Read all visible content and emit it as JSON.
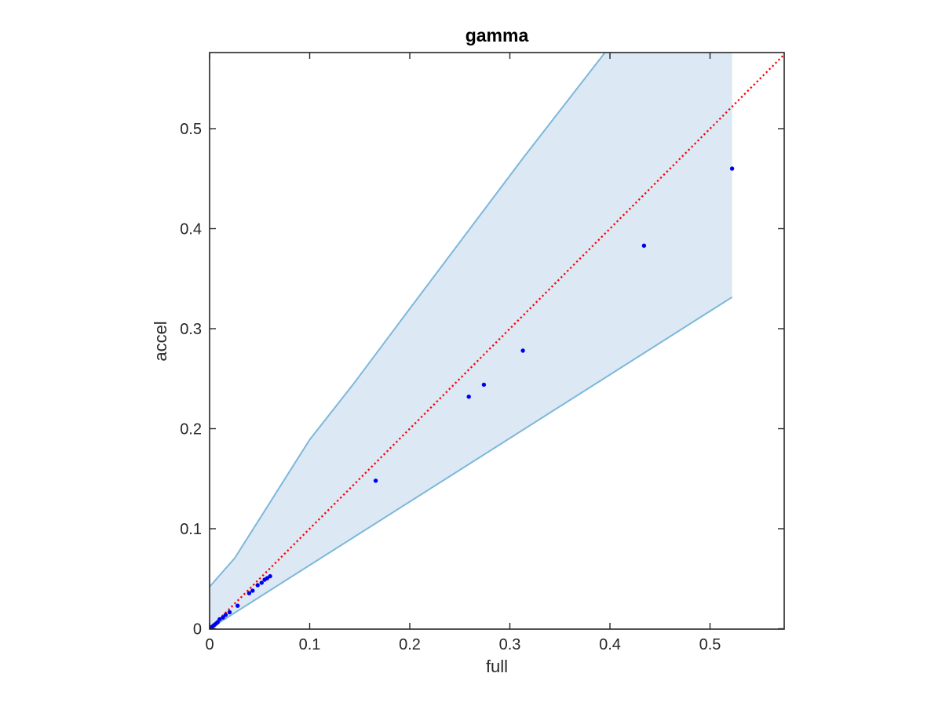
{
  "figure": {
    "title": "gamma",
    "xlabel": "full",
    "ylabel": "accel"
  },
  "colors": {
    "background": "#ffffff",
    "axis": "#262626",
    "band_fill": "#dce9f4",
    "band_edge": "#7db7da",
    "identity_line": "#ff0000",
    "scatter_point": "#0000f0"
  },
  "chart_data": {
    "type": "scatter",
    "title": "gamma",
    "xlabel": "full",
    "ylabel": "accel",
    "xlim": [
      0,
      0.574
    ],
    "ylim": [
      0,
      0.576
    ],
    "grid": false,
    "legend": null,
    "xticks": [
      0,
      0.1,
      0.2,
      0.3,
      0.4,
      0.5
    ],
    "xtick_labels": [
      "0",
      "0.1",
      "0.2",
      "0.3",
      "0.4",
      "0.5"
    ],
    "yticks": [
      0,
      0.1,
      0.2,
      0.3,
      0.4,
      0.5
    ],
    "ytick_labels": [
      "0",
      "0.1",
      "0.2",
      "0.3",
      "0.4",
      "0.5"
    ],
    "identity_line": {
      "style": "dotted",
      "from": [
        0,
        0
      ],
      "to": [
        0.574,
        0.574
      ],
      "description": "red dotted y = x reference line"
    },
    "band": {
      "description": "light blue shaded agreement region clipped at max data x",
      "lower_edge": [
        [
          0,
          0
        ],
        [
          0.522,
          0.3315
        ]
      ],
      "upper_edge": [
        [
          0,
          0.042
        ],
        [
          0.025,
          0.0705
        ],
        [
          0.05,
          0.11
        ],
        [
          0.1,
          0.189
        ],
        [
          0.1435,
          0.2445
        ],
        [
          0.2,
          0.32
        ],
        [
          0.3135,
          0.471
        ],
        [
          0.395,
          0.576
        ]
      ],
      "x_cutoff": 0.522,
      "y_top": 0.576
    },
    "series": [
      {
        "name": "samples",
        "marker": "point",
        "points": [
          [
            0.522,
            0.46
          ],
          [
            0.434,
            0.383
          ],
          [
            0.313,
            0.278
          ],
          [
            0.274,
            0.244
          ],
          [
            0.259,
            0.232
          ],
          [
            0.166,
            0.148
          ],
          [
            0.0605,
            0.0525
          ],
          [
            0.0575,
            0.0505
          ],
          [
            0.055,
            0.049
          ],
          [
            0.052,
            0.046
          ],
          [
            0.048,
            0.0435
          ],
          [
            0.043,
            0.038
          ],
          [
            0.0395,
            0.0355
          ],
          [
            0.028,
            0.023
          ],
          [
            0.02,
            0.0165
          ],
          [
            0.016,
            0.0138
          ],
          [
            0.0133,
            0.0112
          ],
          [
            0.01,
            0.0095
          ],
          [
            0.008,
            0.0065
          ],
          [
            0.0065,
            0.0052
          ],
          [
            0.005,
            0.004
          ],
          [
            0.004,
            0.0031
          ],
          [
            0.003,
            0.0023
          ],
          [
            0.0022,
            0.0017
          ],
          [
            0.0015,
            0.0011
          ],
          [
            0.0008,
            0.0006
          ],
          [
            0.0003,
            0.0002
          ]
        ]
      }
    ]
  }
}
